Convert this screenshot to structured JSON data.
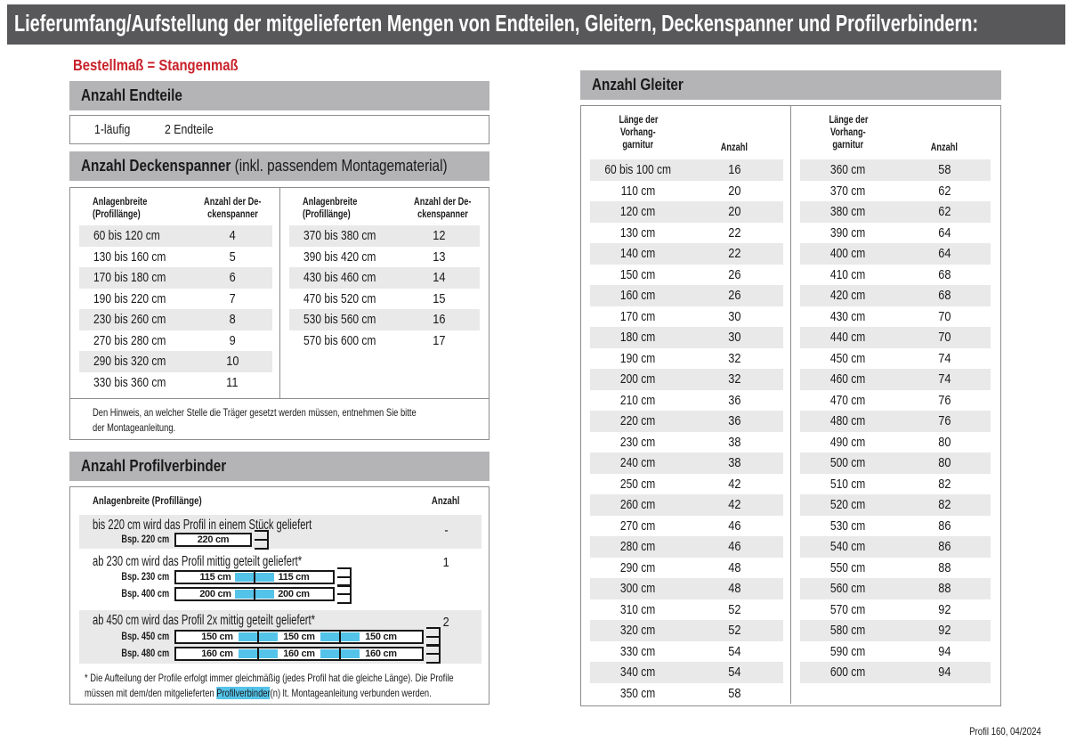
{
  "colors": {
    "title_bar": "#58585a",
    "section_bar": "#b4b4b6",
    "row_alt": "#e9e9e9",
    "border": "#8d8d8d",
    "red": "#c8222a",
    "cyan": "#54c3e9"
  },
  "header": {
    "title": "Lieferumfang/Aufstellung der mitgelieferten Mengen von Endteilen, Gleitern, Deckenspanner und Profilverbindern:"
  },
  "subtitle": "Bestellmaß = Stangenmaß",
  "endteile": {
    "title": "Anzahl Endteile",
    "row": {
      "col1": "1-läufig",
      "col2": "2 Endteile"
    }
  },
  "deckenspanner": {
    "title_bold": "Anzahl Deckenspanner",
    "title_rest": " (inkl. passendem Montagematerial)",
    "header_col1": [
      "Anlagenbreite",
      "(Profillänge)"
    ],
    "header_col2": [
      "Anzahl der De-",
      "ckenspanner"
    ],
    "left_rows": [
      [
        "60 bis 120 cm",
        "4"
      ],
      [
        "130 bis 160 cm",
        "5"
      ],
      [
        "170 bis 180 cm",
        "6"
      ],
      [
        "190 bis 220 cm",
        "7"
      ],
      [
        "230 bis 260 cm",
        "8"
      ],
      [
        "270 bis 280 cm",
        "9"
      ],
      [
        "290 bis 320 cm",
        "10"
      ],
      [
        "330 bis 360 cm",
        "11"
      ]
    ],
    "right_rows": [
      [
        "370 bis 380 cm",
        "12"
      ],
      [
        "390 bis 420 cm",
        "13"
      ],
      [
        "430 bis 460 cm",
        "14"
      ],
      [
        "470 bis 520 cm",
        "15"
      ],
      [
        "530 bis 560 cm",
        "16"
      ],
      [
        "570 bis 600 cm",
        "17"
      ]
    ],
    "note_lines": [
      "Den Hinweis, an welcher Stelle die Träger gesetzt werden müssen, entnehmen Sie bitte",
      "der Montageanleitung."
    ]
  },
  "profilverbinder": {
    "title": "Anzahl Profilverbinder",
    "header_col1": "Anlagenbreite (Profillänge)",
    "header_col2": "Anzahl",
    "sections": [
      {
        "headline": "bis 220 cm wird das Profil in einem Stück geliefert",
        "anzahl": "-",
        "shaded": true,
        "examples": [
          {
            "label": "Bsp. 220 cm",
            "segments": [
              "220 cm"
            ]
          }
        ]
      },
      {
        "headline": "ab 230 cm wird das Profil mittig geteilt geliefert*",
        "anzahl": "1",
        "shaded": false,
        "examples": [
          {
            "label": "Bsp. 230 cm",
            "segments": [
              "115 cm",
              "115 cm"
            ]
          },
          {
            "label": "Bsp. 400 cm",
            "segments": [
              "200 cm",
              "200 cm"
            ]
          }
        ]
      },
      {
        "headline": "ab 450 cm wird das Profil 2x mittig geteilt geliefert*",
        "anzahl": "2",
        "shaded": true,
        "examples": [
          {
            "label": "Bsp. 450 cm",
            "segments": [
              "150 cm",
              "150 cm",
              "150 cm"
            ]
          },
          {
            "label": "Bsp. 480 cm",
            "segments": [
              "160 cm",
              "160 cm",
              "160 cm"
            ]
          }
        ]
      }
    ],
    "footnote_line1": "* Die Aufteilung der Profile erfolgt immer gleichmäßig (jedes Profil hat die gleiche Länge). Die Profile",
    "footnote_line2_pre": "müssen mit dem/den mitgelieferten ",
    "footnote_line2_highlight": "Profilverbinder",
    "footnote_line2_post": "(n) lt. Montageanleitung verbunden werden."
  },
  "gleiter": {
    "title": "Anzahl Gleiter",
    "header_col1": [
      "Länge der",
      "Vorhang-",
      "garnitur"
    ],
    "header_col2": "Anzahl",
    "left_rows": [
      [
        "60 bis 100 cm",
        "16"
      ],
      [
        "110 cm",
        "20"
      ],
      [
        "120 cm",
        "20"
      ],
      [
        "130 cm",
        "22"
      ],
      [
        "140 cm",
        "22"
      ],
      [
        "150 cm",
        "26"
      ],
      [
        "160 cm",
        "26"
      ],
      [
        "170 cm",
        "30"
      ],
      [
        "180 cm",
        "30"
      ],
      [
        "190 cm",
        "32"
      ],
      [
        "200 cm",
        "32"
      ],
      [
        "210 cm",
        "36"
      ],
      [
        "220 cm",
        "36"
      ],
      [
        "230 cm",
        "38"
      ],
      [
        "240 cm",
        "38"
      ],
      [
        "250 cm",
        "42"
      ],
      [
        "260 cm",
        "42"
      ],
      [
        "270 cm",
        "46"
      ],
      [
        "280 cm",
        "46"
      ],
      [
        "290 cm",
        "48"
      ],
      [
        "300 cm",
        "48"
      ],
      [
        "310 cm",
        "52"
      ],
      [
        "320 cm",
        "52"
      ],
      [
        "330 cm",
        "54"
      ],
      [
        "340 cm",
        "54"
      ],
      [
        "350 cm",
        "58"
      ]
    ],
    "right_rows": [
      [
        "360 cm",
        "58"
      ],
      [
        "370 cm",
        "62"
      ],
      [
        "380 cm",
        "62"
      ],
      [
        "390 cm",
        "64"
      ],
      [
        "400 cm",
        "64"
      ],
      [
        "410 cm",
        "68"
      ],
      [
        "420 cm",
        "68"
      ],
      [
        "430 cm",
        "70"
      ],
      [
        "440 cm",
        "70"
      ],
      [
        "450 cm",
        "74"
      ],
      [
        "460 cm",
        "74"
      ],
      [
        "470 cm",
        "76"
      ],
      [
        "480 cm",
        "76"
      ],
      [
        "490 cm",
        "80"
      ],
      [
        "500 cm",
        "80"
      ],
      [
        "510 cm",
        "82"
      ],
      [
        "520 cm",
        "82"
      ],
      [
        "530 cm",
        "86"
      ],
      [
        "540 cm",
        "86"
      ],
      [
        "550 cm",
        "88"
      ],
      [
        "560 cm",
        "88"
      ],
      [
        "570 cm",
        "92"
      ],
      [
        "580 cm",
        "92"
      ],
      [
        "590 cm",
        "94"
      ],
      [
        "600 cm",
        "94"
      ]
    ]
  },
  "footer": "Profil 160, 04/2024"
}
